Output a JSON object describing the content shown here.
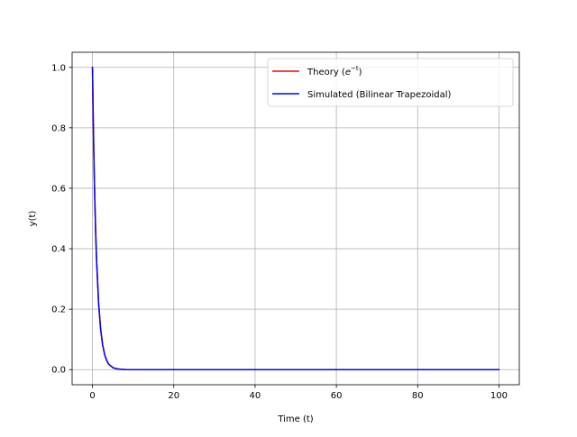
{
  "chart_data": {
    "type": "line",
    "title": "",
    "xlabel": "Time (t)",
    "ylabel": "y(t)",
    "xlim": [
      -5,
      105
    ],
    "ylim": [
      -0.05,
      1.05
    ],
    "grid": true,
    "legend_position": "top-right",
    "x_ticks": [
      {
        "value": 0,
        "label": "0"
      },
      {
        "value": 20,
        "label": "20"
      },
      {
        "value": 40,
        "label": "40"
      },
      {
        "value": 60,
        "label": "60"
      },
      {
        "value": 80,
        "label": "80"
      },
      {
        "value": 100,
        "label": "100"
      }
    ],
    "y_ticks": [
      {
        "value": 0.0,
        "label": "0.0"
      },
      {
        "value": 0.2,
        "label": "0.2"
      },
      {
        "value": 0.4,
        "label": "0.4"
      },
      {
        "value": 0.6,
        "label": "0.6"
      },
      {
        "value": 0.8,
        "label": "0.8"
      },
      {
        "value": 1.0,
        "label": "1.0"
      }
    ],
    "x": [
      0,
      0.25,
      0.5,
      0.75,
      1,
      1.5,
      2,
      2.5,
      3,
      3.5,
      4,
      5,
      6,
      7,
      8,
      10,
      15,
      20,
      30,
      40,
      50,
      60,
      70,
      80,
      90,
      100
    ],
    "series": [
      {
        "name": "Theory",
        "legend_base": "Theory (",
        "legend_base_symbol": "e",
        "legend_exponent": "−t",
        "legend_close": ")",
        "color": "#ff0000",
        "values": [
          1.0,
          0.779,
          0.607,
          0.472,
          0.368,
          0.223,
          0.135,
          0.082,
          0.05,
          0.03,
          0.018,
          0.0067,
          0.0025,
          0.0009,
          0.0003,
          0.0,
          0.0,
          0.0,
          0.0,
          0.0,
          0.0,
          0.0,
          0.0,
          0.0,
          0.0,
          0.0
        ]
      },
      {
        "name": "Simulated (Bilinear Trapezoidal)",
        "color": "#0000ff",
        "values": [
          1.0,
          0.779,
          0.607,
          0.472,
          0.368,
          0.223,
          0.135,
          0.082,
          0.05,
          0.03,
          0.018,
          0.0067,
          0.0025,
          0.0009,
          0.0003,
          0.0,
          0.0,
          0.0,
          0.0,
          0.0,
          0.0,
          0.0,
          0.0,
          0.0,
          0.0,
          0.0
        ]
      }
    ]
  }
}
